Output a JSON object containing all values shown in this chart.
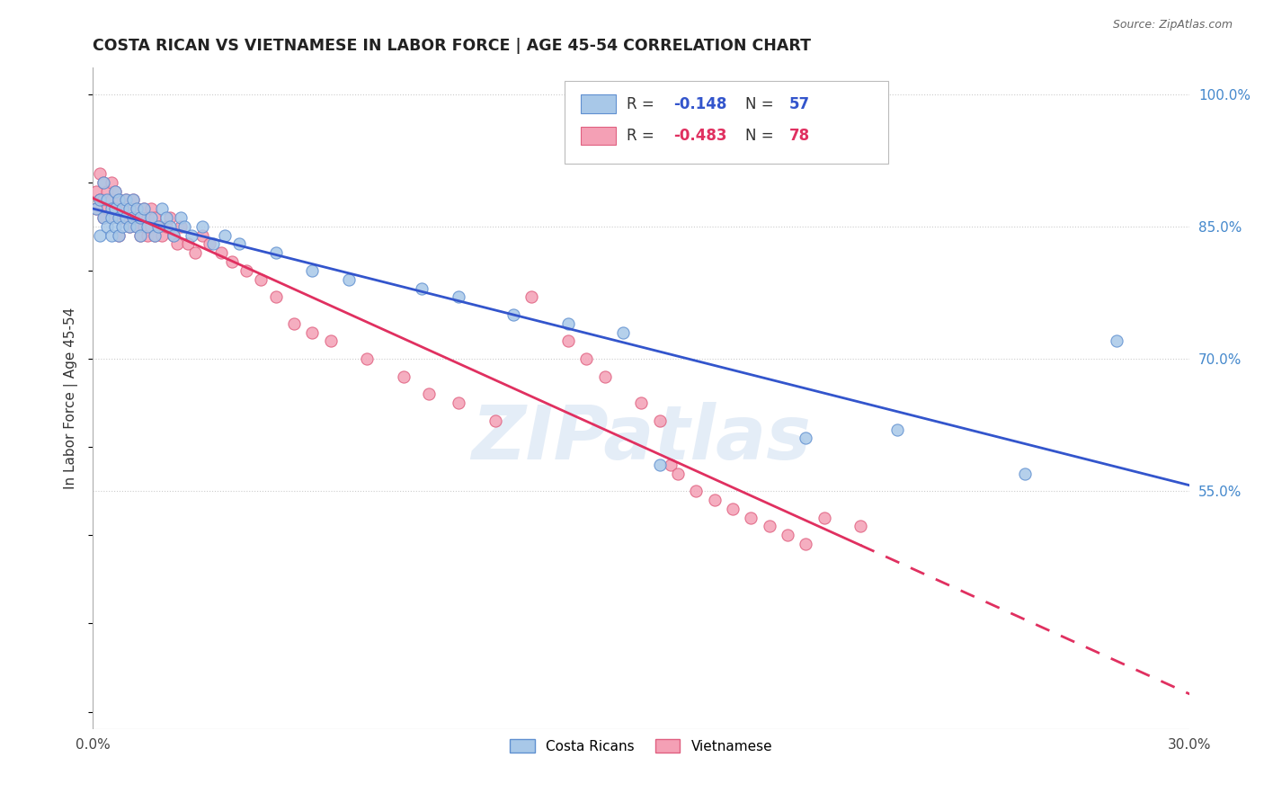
{
  "title": "COSTA RICAN VS VIETNAMESE IN LABOR FORCE | AGE 45-54 CORRELATION CHART",
  "source": "Source: ZipAtlas.com",
  "ylabel": "In Labor Force | Age 45-54",
  "xlim": [
    0.0,
    0.3
  ],
  "ylim": [
    0.28,
    1.03
  ],
  "xticks": [
    0.0,
    0.05,
    0.1,
    0.15,
    0.2,
    0.25,
    0.3
  ],
  "xticklabels": [
    "0.0%",
    "",
    "",
    "",
    "",
    "",
    "30.0%"
  ],
  "right_yticks": [
    1.0,
    0.85,
    0.7,
    0.55
  ],
  "right_yticklabels": [
    "100.0%",
    "85.0%",
    "70.0%",
    "55.0%"
  ],
  "blue_R": -0.148,
  "blue_N": 57,
  "pink_R": -0.483,
  "pink_N": 78,
  "blue_color": "#a8c8e8",
  "pink_color": "#f4a0b5",
  "blue_edge_color": "#6090d0",
  "pink_edge_color": "#e06080",
  "blue_line_color": "#3355cc",
  "pink_line_color": "#e03060",
  "grid_color": "#cccccc",
  "background_color": "#ffffff",
  "right_axis_color": "#4488cc",
  "watermark": "ZIPatlas",
  "legend_label_blue": "Costa Ricans",
  "legend_label_pink": "Vietnamese",
  "blue_scatter_x": [
    0.001,
    0.002,
    0.002,
    0.003,
    0.003,
    0.004,
    0.004,
    0.005,
    0.005,
    0.005,
    0.006,
    0.006,
    0.006,
    0.007,
    0.007,
    0.007,
    0.008,
    0.008,
    0.009,
    0.009,
    0.01,
    0.01,
    0.011,
    0.011,
    0.012,
    0.012,
    0.013,
    0.013,
    0.014,
    0.015,
    0.016,
    0.017,
    0.018,
    0.019,
    0.02,
    0.021,
    0.022,
    0.024,
    0.025,
    0.027,
    0.03,
    0.033,
    0.036,
    0.04,
    0.05,
    0.06,
    0.07,
    0.09,
    0.1,
    0.115,
    0.13,
    0.145,
    0.155,
    0.195,
    0.22,
    0.255,
    0.28
  ],
  "blue_scatter_y": [
    0.87,
    0.88,
    0.84,
    0.9,
    0.86,
    0.88,
    0.85,
    0.87,
    0.86,
    0.84,
    0.89,
    0.87,
    0.85,
    0.88,
    0.86,
    0.84,
    0.87,
    0.85,
    0.88,
    0.86,
    0.87,
    0.85,
    0.88,
    0.86,
    0.87,
    0.85,
    0.86,
    0.84,
    0.87,
    0.85,
    0.86,
    0.84,
    0.85,
    0.87,
    0.86,
    0.85,
    0.84,
    0.86,
    0.85,
    0.84,
    0.85,
    0.83,
    0.84,
    0.83,
    0.82,
    0.8,
    0.79,
    0.78,
    0.77,
    0.75,
    0.74,
    0.73,
    0.58,
    0.61,
    0.62,
    0.57,
    0.72
  ],
  "pink_scatter_x": [
    0.001,
    0.001,
    0.002,
    0.002,
    0.003,
    0.003,
    0.003,
    0.004,
    0.004,
    0.005,
    0.005,
    0.005,
    0.006,
    0.006,
    0.007,
    0.007,
    0.007,
    0.008,
    0.008,
    0.009,
    0.009,
    0.01,
    0.01,
    0.011,
    0.011,
    0.012,
    0.012,
    0.013,
    0.013,
    0.014,
    0.014,
    0.015,
    0.015,
    0.016,
    0.016,
    0.017,
    0.017,
    0.018,
    0.019,
    0.02,
    0.021,
    0.022,
    0.023,
    0.024,
    0.026,
    0.028,
    0.03,
    0.032,
    0.035,
    0.038,
    0.042,
    0.046,
    0.05,
    0.055,
    0.06,
    0.065,
    0.075,
    0.085,
    0.092,
    0.1,
    0.11,
    0.12,
    0.13,
    0.135,
    0.14,
    0.15,
    0.155,
    0.158,
    0.16,
    0.165,
    0.17,
    0.175,
    0.18,
    0.185,
    0.19,
    0.195,
    0.2,
    0.21
  ],
  "pink_scatter_y": [
    0.89,
    0.87,
    0.91,
    0.88,
    0.9,
    0.88,
    0.86,
    0.89,
    0.87,
    0.9,
    0.88,
    0.86,
    0.89,
    0.87,
    0.88,
    0.86,
    0.84,
    0.87,
    0.86,
    0.88,
    0.86,
    0.87,
    0.85,
    0.88,
    0.86,
    0.87,
    0.85,
    0.86,
    0.84,
    0.87,
    0.85,
    0.86,
    0.84,
    0.87,
    0.85,
    0.86,
    0.84,
    0.85,
    0.84,
    0.85,
    0.86,
    0.84,
    0.83,
    0.85,
    0.83,
    0.82,
    0.84,
    0.83,
    0.82,
    0.81,
    0.8,
    0.79,
    0.77,
    0.74,
    0.73,
    0.72,
    0.7,
    0.68,
    0.66,
    0.65,
    0.63,
    0.77,
    0.72,
    0.7,
    0.68,
    0.65,
    0.63,
    0.58,
    0.57,
    0.55,
    0.54,
    0.53,
    0.52,
    0.51,
    0.5,
    0.49,
    0.52,
    0.51
  ]
}
